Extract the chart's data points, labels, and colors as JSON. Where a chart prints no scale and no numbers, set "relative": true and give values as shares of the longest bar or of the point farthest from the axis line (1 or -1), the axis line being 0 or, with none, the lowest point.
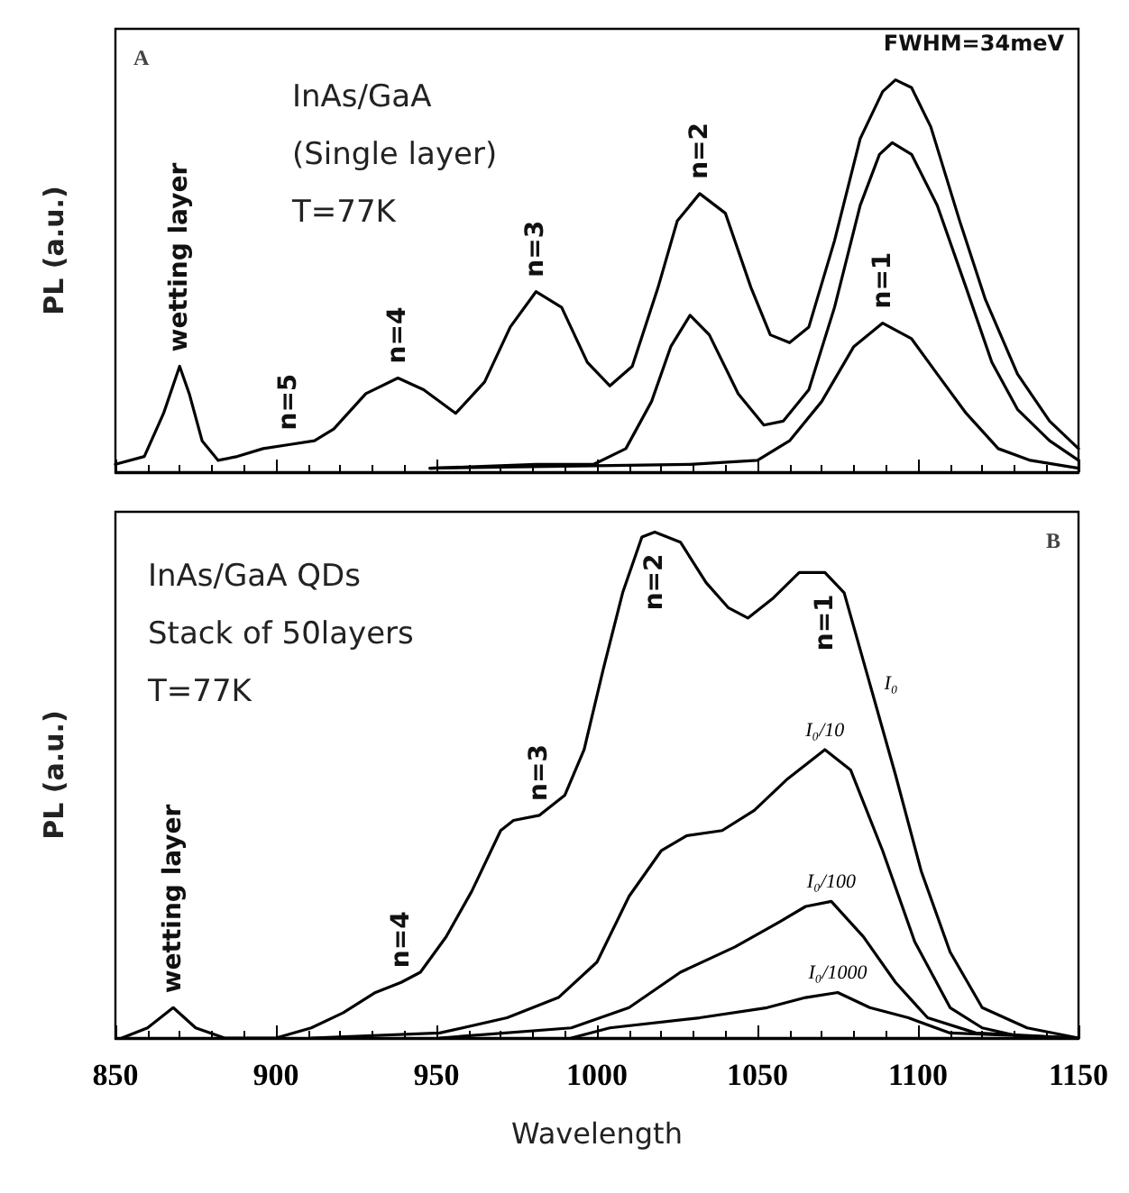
{
  "chart_data": [
    {
      "type": "line",
      "title": "A",
      "ylabel": "PL (a.u.)",
      "relative": true,
      "xlim": [
        850,
        1150
      ],
      "xticks": [
        850,
        900,
        950,
        1000,
        1050,
        1100,
        1150
      ],
      "tick_labels": false,
      "grid": false,
      "legend": false,
      "marker": "none",
      "annotations": [
        "InAs/GaA",
        "(Single layer)",
        "T=77K",
        "FWHM=34meV",
        {
          "text": "wetting layer",
          "x": 870,
          "y": 0.27
        },
        {
          "text": "n=5",
          "x": 904,
          "y": 0.07
        },
        {
          "text": "n=4",
          "x": 938,
          "y": 0.24
        },
        {
          "text": "n=3",
          "x": 981,
          "y": 0.46
        },
        {
          "text": "n=2",
          "x": 1032,
          "y": 0.71
        },
        {
          "text": "n=1",
          "x": 1089,
          "y": 0.38
        }
      ],
      "series": [
        {
          "color": "#000000",
          "x": [
            850,
            859,
            865,
            870,
            873,
            877,
            882,
            888,
            896,
            904,
            912,
            918,
            928,
            938,
            946,
            956,
            965,
            973,
            981,
            989,
            997,
            1004,
            1011,
            1019,
            1025,
            1032,
            1040,
            1048,
            1054,
            1060,
            1066,
            1074,
            1082,
            1089,
            1093,
            1098,
            1104,
            1113,
            1121,
            1131,
            1141,
            1150
          ],
          "values": [
            0.02,
            0.04,
            0.15,
            0.27,
            0.2,
            0.08,
            0.03,
            0.04,
            0.06,
            0.07,
            0.08,
            0.11,
            0.2,
            0.24,
            0.21,
            0.15,
            0.23,
            0.37,
            0.46,
            0.42,
            0.28,
            0.22,
            0.27,
            0.47,
            0.64,
            0.71,
            0.66,
            0.47,
            0.35,
            0.33,
            0.37,
            0.59,
            0.85,
            0.97,
            1,
            0.98,
            0.88,
            0.64,
            0.44,
            0.25,
            0.13,
            0.06
          ]
        },
        {
          "color": "#000000",
          "x": [
            948,
            981,
            999,
            1009,
            1017,
            1023,
            1029,
            1035,
            1044,
            1052,
            1058,
            1066,
            1074,
            1082,
            1088,
            1092,
            1098,
            1106,
            1115,
            1123,
            1131,
            1141,
            1150
          ],
          "values": [
            0.01,
            0.02,
            0.02,
            0.06,
            0.18,
            0.32,
            0.4,
            0.35,
            0.2,
            0.12,
            0.13,
            0.21,
            0.42,
            0.68,
            0.81,
            0.84,
            0.81,
            0.68,
            0.47,
            0.28,
            0.16,
            0.08,
            0.03
          ]
        },
        {
          "color": "#000000",
          "x": [
            948,
            1029,
            1050,
            1060,
            1070,
            1080,
            1089,
            1098,
            1106,
            1115,
            1125,
            1135,
            1150
          ],
          "values": [
            0.01,
            0.02,
            0.03,
            0.08,
            0.18,
            0.32,
            0.38,
            0.34,
            0.25,
            0.15,
            0.06,
            0.03,
            0.01
          ]
        }
      ]
    },
    {
      "type": "line",
      "title": "B",
      "xlabel": "Wavelength",
      "ylabel": "PL (a.u.)",
      "relative": true,
      "xlim": [
        850,
        1150
      ],
      "xticks": [
        850,
        900,
        950,
        1000,
        1050,
        1100,
        1150
      ],
      "tick_labels": "x",
      "grid": false,
      "legend": false,
      "marker": "none",
      "annotations": [
        "InAs/GaA QDs",
        "Stack of 50layers",
        "T=77K",
        {
          "text": "wetting layer",
          "x": 868,
          "y": 0.06
        },
        {
          "text": "n=4",
          "x": 939,
          "y": 0.11
        },
        {
          "text": "n=3",
          "x": 982,
          "y": 0.44
        },
        {
          "text": "n=2",
          "x": 1018,
          "y": 1
        },
        {
          "text": "n=1",
          "x": 1071,
          "y": 0.92
        }
      ],
      "series": [
        {
          "name": "I₀",
          "color": "#000000",
          "x": [
            852,
            860,
            868,
            875,
            884,
            900,
            911,
            921,
            931,
            939,
            945,
            953,
            961,
            970,
            974,
            982,
            990,
            996,
            1002,
            1008,
            1014,
            1018,
            1026,
            1034,
            1041,
            1047,
            1055,
            1063,
            1071,
            1077,
            1085,
            1093,
            1101,
            1110,
            1120,
            1134,
            1150
          ],
          "values": [
            0,
            0.02,
            0.06,
            0.02,
            0,
            0,
            0.02,
            0.05,
            0.09,
            0.11,
            0.13,
            0.2,
            0.29,
            0.41,
            0.43,
            0.44,
            0.48,
            0.57,
            0.73,
            0.88,
            0.99,
            1,
            0.98,
            0.9,
            0.85,
            0.83,
            0.87,
            0.92,
            0.92,
            0.88,
            0.7,
            0.52,
            0.33,
            0.17,
            0.06,
            0.02,
            0
          ]
        },
        {
          "name": "I₀/10",
          "color": "#000000",
          "x": [
            911,
            951,
            972,
            988,
            1000,
            1010,
            1020,
            1028,
            1039,
            1049,
            1059,
            1071,
            1079,
            1089,
            1099,
            1110,
            1120,
            1134,
            1150
          ],
          "values": [
            0,
            0.01,
            0.04,
            0.08,
            0.15,
            0.28,
            0.37,
            0.4,
            0.41,
            0.45,
            0.51,
            0.57,
            0.53,
            0.37,
            0.19,
            0.06,
            0.02,
            0,
            0
          ]
        },
        {
          "name": "I₀/100",
          "color": "#000000",
          "x": [
            951,
            992,
            1010,
            1026,
            1043,
            1057,
            1065,
            1073,
            1083,
            1093,
            1103,
            1118,
            1150
          ],
          "values": [
            0,
            0.02,
            0.06,
            0.13,
            0.18,
            0.23,
            0.26,
            0.27,
            0.2,
            0.11,
            0.04,
            0.01,
            0
          ]
        },
        {
          "name": "I₀/1000",
          "color": "#000000",
          "x": [
            992,
            1004,
            1032,
            1053,
            1065,
            1075,
            1085,
            1097,
            1110,
            1150
          ],
          "values": [
            0,
            0.02,
            0.04,
            0.06,
            0.08,
            0.09,
            0.06,
            0.04,
            0.01,
            0
          ]
        }
      ]
    }
  ]
}
